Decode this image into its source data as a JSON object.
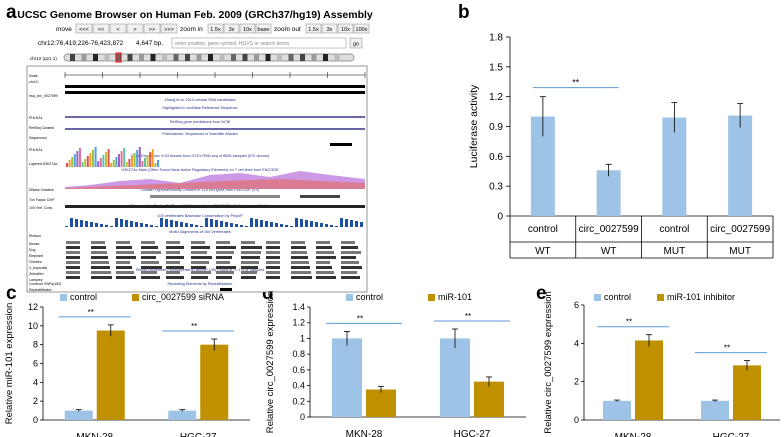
{
  "panel_letters": {
    "a": "a",
    "b": "b",
    "c": "c",
    "d": "d",
    "e": "e"
  },
  "colors": {
    "control": "#9dc3e6",
    "treatment": "#bf9000",
    "sig": "#5b9bd5",
    "error": "#000000"
  },
  "browser": {
    "title": "UCSC Genome Browser on Human Feb. 2009 (GRCh37/hg19) Assembly",
    "move_label": "move",
    "move_buttons": [
      "<<<",
      "<<",
      "<",
      ">",
      ">>",
      ">>>"
    ],
    "zoom_in_label": "zoom in",
    "zoom_in_buttons": [
      "1.5x",
      "3x",
      "10x",
      "base"
    ],
    "zoom_out_label": "zoom out",
    "zoom_out_buttons": [
      "1.5x",
      "3x",
      "10x",
      "100x"
    ],
    "position": "chr12:76,419,226-76,423,872",
    "size": "4,647 bp.",
    "search_placeholder": "enter position, gene symbol, HGVS or search terms",
    "go_button": "go",
    "chrom_label": "chr12 (q21.1)",
    "tracks": [
      "Scale",
      "chr12:",
      "hsa_circ_0027599",
      "PHLDA1",
      "RefSeq Curated",
      "Sequenced",
      "PHLDA1",
      "Layered H3K27Ac",
      "DNase Clusters",
      "Txn Factor ChIP",
      "100 Vert. Cons",
      "Rhesus",
      "Mouse",
      "Dog",
      "Elephant",
      "Chicken",
      "X_tropicalis",
      "Zebrafish",
      "Lamprey",
      "Common SNPs(150)",
      "RepeatMasker"
    ],
    "track_descriptions": [
      "Zhang et al. 2013 circular RNA candidates",
      "Highlighted in circBase Reference Sequence",
      "RefSeq gene predictions from NCBI",
      "Publications: Sequences in Scientific Articles",
      "Gene Expression in 53 tissues from GTEx RNA-seq of 8555 samples (570 donors)",
      "H3K27Ac Mark (Often Found Near Active Regulatory Elements) on 7 cell lines from ENCODE",
      "DNaseI Hypersensitivity Clusters in 125 cell types from ENCODE (V3)",
      "Transcription Factor ChIP-seq (161 factors) from ENCODE with Factorbook Motifs",
      "100 vertebrates Basewise Conservation by PhyloP",
      "Multiz Alignments of 100 Vertebrates",
      "Simple Nucleotide Polymorphisms (dbSNP 150) Found in >= 1% of Samples",
      "Repeating Elements by RepeatMasker"
    ]
  },
  "chart_data": [
    {
      "panel": "b",
      "type": "bar",
      "categories": [
        "control",
        "circ_0027599",
        "control",
        "circ_0027599"
      ],
      "groups": [
        "WT",
        "WT",
        "MUT",
        "MUT"
      ],
      "values": [
        1.0,
        0.46,
        0.99,
        1.01
      ],
      "errors": [
        0.2,
        0.06,
        0.15,
        0.12
      ],
      "ylabel": "Luciferase activity",
      "ylim": [
        0,
        1.8
      ],
      "yticks": [
        "0",
        "0.3",
        "0.6",
        "0.9",
        "1.2",
        "1.5",
        "1.8"
      ],
      "significance": [
        {
          "from": 0,
          "to": 1,
          "label": "**"
        }
      ]
    },
    {
      "panel": "c",
      "type": "bar",
      "categories": [
        "MKN-28",
        "HGC-27"
      ],
      "series": [
        {
          "name": "control",
          "values": [
            1.0,
            1.0
          ],
          "errors": [
            0.1,
            0.1
          ]
        },
        {
          "name": "circ_0027599 siRNA",
          "values": [
            9.5,
            8.0
          ],
          "errors": [
            0.6,
            0.6
          ]
        }
      ],
      "ylabel": "Relative miR-101 expression",
      "ylim": [
        0,
        12
      ],
      "yticks": [
        "0",
        "2",
        "4",
        "6",
        "8",
        "10",
        "12"
      ],
      "significance": [
        {
          "category": 0,
          "label": "**"
        },
        {
          "category": 1,
          "label": "**"
        }
      ]
    },
    {
      "panel": "d",
      "type": "bar",
      "categories": [
        "MKN-28",
        "HGC-27"
      ],
      "series": [
        {
          "name": "control",
          "values": [
            1.0,
            1.0
          ],
          "errors": [
            0.09,
            0.12
          ]
        },
        {
          "name": "miR-101",
          "values": [
            0.35,
            0.45
          ],
          "errors": [
            0.04,
            0.06
          ]
        }
      ],
      "ylabel": "Relative circ_0027599 expression",
      "ylim": [
        0,
        1.4
      ],
      "yticks": [
        "0",
        "0.2",
        "0.4",
        "0.6",
        "0.8",
        "1",
        "1.2",
        "1.4"
      ],
      "significance": [
        {
          "category": 0,
          "label": "**"
        },
        {
          "category": 1,
          "label": "**"
        }
      ]
    },
    {
      "panel": "e",
      "type": "bar",
      "categories": [
        "MKN-28",
        "HGC-27"
      ],
      "series": [
        {
          "name": "control",
          "values": [
            1.0,
            1.0
          ],
          "errors": [
            0.04,
            0.04
          ]
        },
        {
          "name": "miR-101 inhibitor",
          "values": [
            4.15,
            2.85
          ],
          "errors": [
            0.3,
            0.25
          ]
        }
      ],
      "ylabel": "Relative circ_0027599 expression",
      "ylim": [
        0,
        6
      ],
      "yticks": [
        "0",
        "2",
        "4",
        "6"
      ],
      "significance": [
        {
          "category": 0,
          "label": "**"
        },
        {
          "category": 1,
          "label": "**"
        }
      ]
    }
  ]
}
